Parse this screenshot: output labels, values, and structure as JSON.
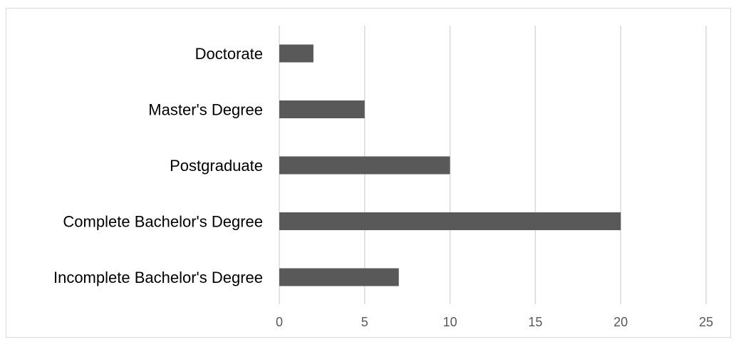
{
  "chart_data": {
    "type": "bar",
    "orientation": "horizontal",
    "categories": [
      "Doctorate",
      "Master's Degree",
      "Postgraduate",
      "Complete Bachelor's Degree",
      "Incomplete Bachelor's Degree"
    ],
    "values": [
      2,
      5,
      10,
      20,
      7
    ],
    "xlim": [
      0,
      25
    ],
    "xticks": [
      "0",
      "5",
      "10",
      "15",
      "20",
      "25"
    ],
    "grid": true,
    "legend": "none",
    "colors": {
      "bar": "#595959",
      "grid": "#d9d9d9",
      "tick_text": "#595959"
    }
  }
}
